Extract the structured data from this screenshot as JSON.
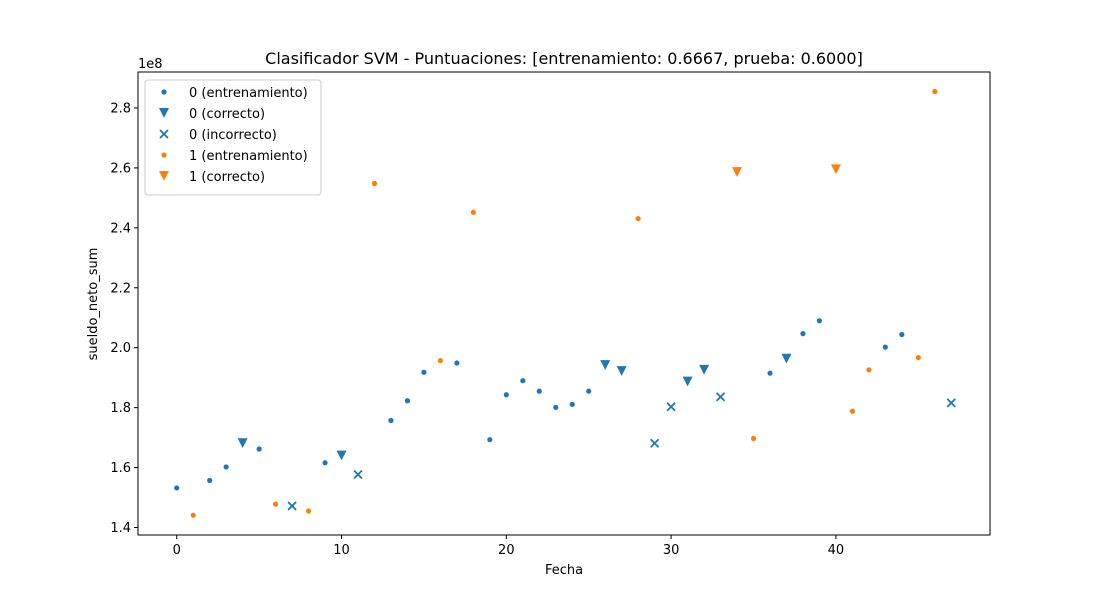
{
  "chart_data": {
    "type": "scatter",
    "title": "Clasificador SVM - Puntuaciones: [entrenamiento: 0.6667, prueba: 0.6000]",
    "xlabel": "Fecha",
    "ylabel": "sueldo_neto_sum",
    "y_offset_label": "1e8",
    "xlim": [
      -2.35,
      49.35
    ],
    "ylim": [
      1.375,
      2.92
    ],
    "xticks": [
      0,
      10,
      20,
      30,
      40
    ],
    "xtick_labels": [
      "0",
      "10",
      "20",
      "30",
      "40"
    ],
    "yticks": [
      1.4,
      1.6,
      1.8,
      2.0,
      2.2,
      2.4,
      2.6,
      2.8
    ],
    "ytick_labels": [
      "1.4",
      "1.6",
      "1.8",
      "2.0",
      "2.2",
      "2.4",
      "2.6",
      "2.8"
    ],
    "legend_position": "top-left",
    "grid": false,
    "series": [
      {
        "name": "0 (entrenamiento)",
        "marker": "dot",
        "color": "#1f77b4",
        "points": [
          [
            0,
            1.532
          ],
          [
            2,
            1.557
          ],
          [
            3,
            1.602
          ],
          [
            5,
            1.662
          ],
          [
            9,
            1.616
          ],
          [
            13,
            1.757
          ],
          [
            14,
            1.823
          ],
          [
            15,
            1.918
          ],
          [
            17,
            1.949
          ],
          [
            19,
            1.693
          ],
          [
            20,
            1.843
          ],
          [
            21,
            1.89
          ],
          [
            22,
            1.855
          ],
          [
            23,
            1.801
          ],
          [
            24,
            1.811
          ],
          [
            25,
            1.855
          ],
          [
            36,
            1.915
          ],
          [
            38,
            2.047
          ],
          [
            39,
            2.09
          ],
          [
            43,
            2.002
          ],
          [
            44,
            2.044
          ]
        ]
      },
      {
        "name": "0 (correcto)",
        "marker": "triangle-down",
        "color": "#1f77b4",
        "points": [
          [
            4,
            1.681
          ],
          [
            10,
            1.64
          ],
          [
            26,
            1.942
          ],
          [
            27,
            1.922
          ],
          [
            31,
            1.887
          ],
          [
            32,
            1.926
          ],
          [
            37,
            1.963
          ]
        ]
      },
      {
        "name": "0 (incorrecto)",
        "marker": "x",
        "color": "#1f77b4",
        "points": [
          [
            7,
            1.472
          ],
          [
            11,
            1.577
          ],
          [
            29,
            1.681
          ],
          [
            30,
            1.803
          ],
          [
            33,
            1.836
          ],
          [
            47,
            1.816
          ]
        ]
      },
      {
        "name": "1 (entrenamiento)",
        "marker": "dot",
        "color": "#ff7f0e",
        "points": [
          [
            1,
            1.441
          ],
          [
            6,
            1.478
          ],
          [
            8,
            1.455
          ],
          [
            12,
            2.548
          ],
          [
            16,
            1.957
          ],
          [
            18,
            2.452
          ],
          [
            28,
            2.431
          ],
          [
            35,
            1.697
          ],
          [
            41,
            1.788
          ],
          [
            42,
            1.926
          ],
          [
            45,
            1.967
          ],
          [
            46,
            2.855
          ]
        ]
      },
      {
        "name": "1 (correcto)",
        "marker": "triangle-down",
        "color": "#ff7f0e",
        "points": [
          [
            34,
            2.586
          ],
          [
            40,
            2.595
          ]
        ]
      }
    ]
  }
}
